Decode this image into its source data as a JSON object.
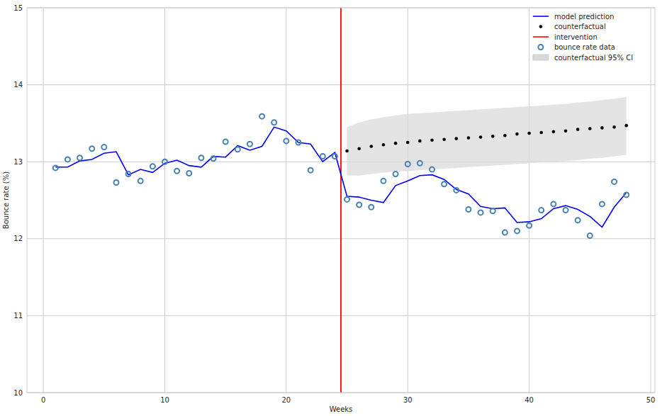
{
  "chart_data": {
    "type": "line",
    "x_label": "Weeks",
    "y_label": "Bounce rate (%)",
    "x": [
      1,
      2,
      3,
      4,
      5,
      6,
      7,
      8,
      9,
      10,
      11,
      12,
      13,
      14,
      15,
      16,
      17,
      18,
      19,
      20,
      21,
      22,
      23,
      24,
      25,
      26,
      27,
      28,
      29,
      30,
      31,
      32,
      33,
      34,
      35,
      36,
      37,
      38,
      39,
      40,
      41,
      42,
      43,
      44,
      45,
      46,
      47,
      48
    ],
    "xlim": [
      -1.35,
      50.35
    ],
    "xticks": [
      0,
      10,
      20,
      30,
      40,
      50
    ],
    "ylim": [
      10,
      15
    ],
    "yticks": [
      10,
      11,
      12,
      13,
      14,
      15
    ],
    "grid": true,
    "legend": "upper right",
    "series": [
      {
        "name": "model prediction",
        "type": "line",
        "color": "#0000ff",
        "line_style": "solid",
        "values": [
          12.93,
          12.93,
          13.01,
          13.03,
          13.11,
          13.13,
          12.83,
          12.9,
          12.86,
          12.98,
          13.02,
          12.95,
          12.93,
          13.07,
          13.06,
          13.21,
          13.15,
          13.2,
          13.45,
          13.4,
          13.25,
          13.23,
          13.0,
          13.12,
          12.55,
          12.54,
          12.5,
          12.47,
          12.69,
          12.75,
          12.82,
          12.83,
          12.77,
          12.64,
          12.58,
          12.42,
          12.39,
          12.4,
          12.21,
          12.22,
          12.26,
          12.39,
          12.43,
          12.38,
          12.29,
          12.15,
          12.41,
          12.6
        ]
      },
      {
        "name": "counterfactual",
        "type": "scatter",
        "color": "#000000",
        "marker": "dot",
        "values": [
          null,
          null,
          null,
          null,
          null,
          null,
          null,
          null,
          null,
          null,
          null,
          null,
          null,
          null,
          null,
          null,
          null,
          null,
          null,
          null,
          null,
          null,
          null,
          null,
          13.14,
          13.17,
          13.2,
          13.22,
          13.24,
          13.25,
          13.27,
          13.28,
          13.29,
          13.3,
          13.31,
          13.32,
          13.33,
          13.34,
          13.36,
          13.37,
          13.38,
          13.39,
          13.4,
          13.42,
          13.43,
          13.44,
          13.45,
          13.47
        ]
      },
      {
        "name": "intervention",
        "type": "vline",
        "color": "#ff0000",
        "line_style": "solid",
        "x": [
          24.5
        ]
      },
      {
        "name": "bounce rate data",
        "type": "scatter",
        "color": "#4682b4",
        "marker": "open-circle",
        "values": [
          12.92,
          13.03,
          13.05,
          13.17,
          13.19,
          12.73,
          12.84,
          12.75,
          12.94,
          13.0,
          12.88,
          12.85,
          13.05,
          13.04,
          13.26,
          13.16,
          13.23,
          13.59,
          13.51,
          13.27,
          13.25,
          12.89,
          13.07,
          13.07,
          12.51,
          12.44,
          12.41,
          12.75,
          12.84,
          12.97,
          12.98,
          12.9,
          12.71,
          12.63,
          12.38,
          12.34,
          12.36,
          12.08,
          12.1,
          12.17,
          12.37,
          12.45,
          12.37,
          12.24,
          12.04,
          12.45,
          12.74,
          12.57
        ]
      },
      {
        "name": "counterfactual 95% CI",
        "type": "band",
        "color": "#d9d9d9",
        "lower": [
          null,
          null,
          null,
          null,
          null,
          null,
          null,
          null,
          null,
          null,
          null,
          null,
          null,
          null,
          null,
          null,
          null,
          null,
          null,
          null,
          null,
          null,
          null,
          null,
          12.82,
          12.82,
          12.84,
          12.86,
          12.87,
          12.88,
          12.89,
          12.9,
          12.91,
          12.92,
          12.93,
          12.94,
          12.95,
          12.96,
          12.97,
          12.98,
          12.99,
          13.0,
          13.01,
          13.02,
          13.04,
          13.05,
          13.07,
          13.09
        ],
        "upper": [
          null,
          null,
          null,
          null,
          null,
          null,
          null,
          null,
          null,
          null,
          null,
          null,
          null,
          null,
          null,
          null,
          null,
          null,
          null,
          null,
          null,
          null,
          null,
          null,
          13.45,
          13.51,
          13.55,
          13.58,
          13.6,
          13.62,
          13.63,
          13.64,
          13.65,
          13.66,
          13.67,
          13.68,
          13.69,
          13.7,
          13.71,
          13.72,
          13.73,
          13.74,
          13.75,
          13.77,
          13.78,
          13.8,
          13.82,
          13.84
        ]
      }
    ]
  }
}
